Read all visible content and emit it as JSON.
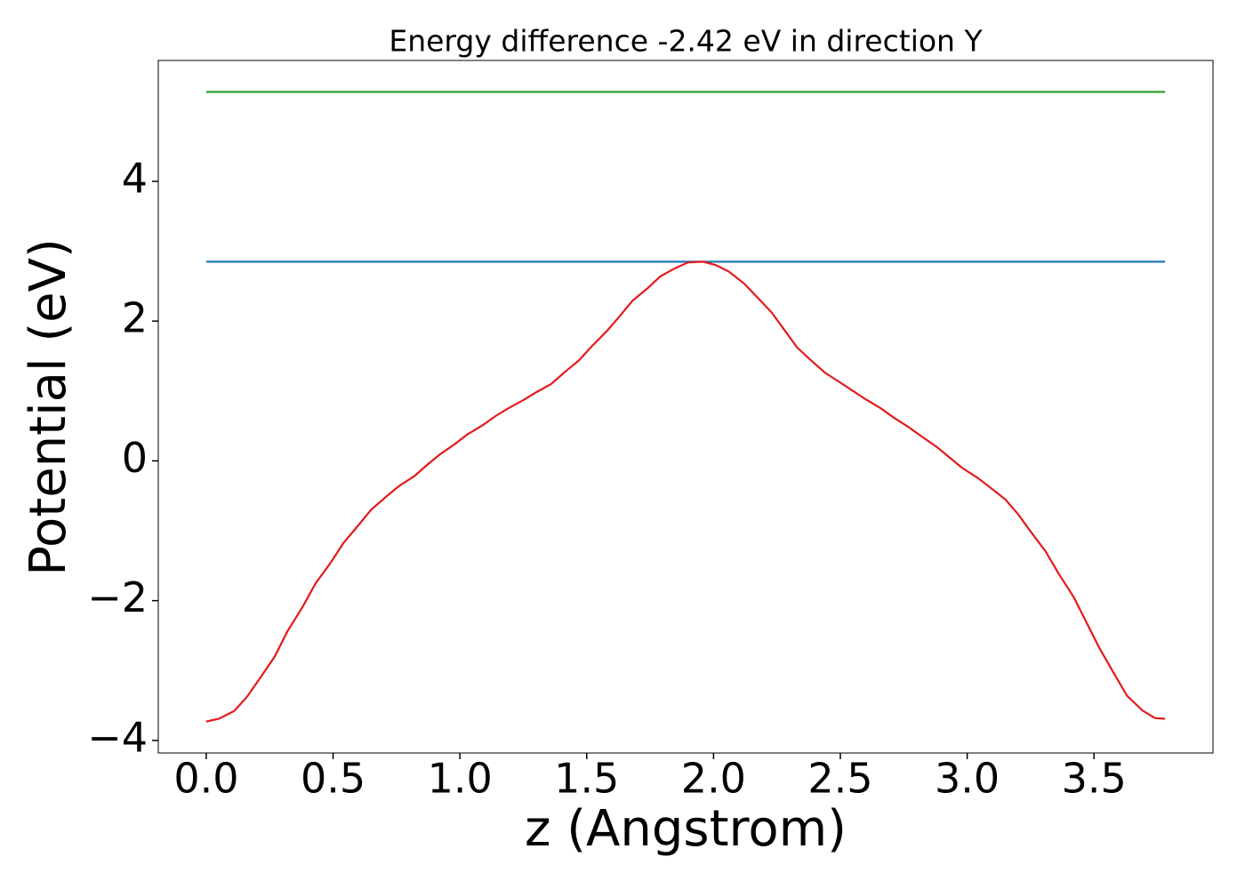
{
  "chart_data": {
    "type": "line",
    "title": "Energy difference -2.42 eV in direction Y",
    "xlabel": "z (Angstrom)",
    "ylabel": "Potential (eV)",
    "xlim": [
      -0.189,
      3.969
    ],
    "ylim": [
      -4.18,
      5.73
    ],
    "xticks": [
      {
        "value": 0,
        "label": "0.0"
      },
      {
        "value": 0.5,
        "label": "0.5"
      },
      {
        "value": 1,
        "label": "1.0"
      },
      {
        "value": 1.5,
        "label": "1.5"
      },
      {
        "value": 2,
        "label": "2.0"
      },
      {
        "value": 2.5,
        "label": "2.5"
      },
      {
        "value": 3,
        "label": "3.0"
      },
      {
        "value": 3.5,
        "label": "3.5"
      }
    ],
    "yticks": [
      {
        "value": -4,
        "label": "−4"
      },
      {
        "value": -2,
        "label": "−2"
      },
      0,
      2,
      4
    ],
    "grid": false,
    "series": [
      {
        "color": "#2ca02c",
        "x": [
          0,
          3.78
        ],
        "values": [
          5.28,
          5.28
        ]
      },
      {
        "color": "#1f77b4",
        "x": [
          0,
          3.78
        ],
        "values": [
          2.85,
          2.85
        ]
      },
      {
        "color": "#e41a1c",
        "x": [
          0,
          0.05,
          0.11,
          0.16,
          0.21,
          0.27,
          0.32,
          0.38,
          0.43,
          0.49,
          0.54,
          0.6,
          0.65,
          0.71,
          0.76,
          0.82,
          0.87,
          0.92,
          0.98,
          1.03,
          1.09,
          1.14,
          1.19,
          1.25,
          1.3,
          1.36,
          1.41,
          1.47,
          1.52,
          1.58,
          1.63,
          1.68,
          1.74,
          1.79,
          1.85,
          1.9,
          1.96,
          2.01,
          2.06,
          2.12,
          2.17,
          2.23,
          2.28,
          2.33,
          2.39,
          2.44,
          2.5,
          2.55,
          2.6,
          2.66,
          2.71,
          2.77,
          2.82,
          2.88,
          2.93,
          2.98,
          3.04,
          3.09,
          3.15,
          3.2,
          3.25,
          3.31,
          3.36,
          3.42,
          3.47,
          3.52,
          3.58,
          3.63,
          3.69,
          3.74,
          3.78
        ],
        "values": [
          -3.73,
          -3.69,
          -3.58,
          -3.38,
          -3.12,
          -2.8,
          -2.44,
          -2.09,
          -1.76,
          -1.46,
          -1.18,
          -0.92,
          -0.7,
          -0.51,
          -0.36,
          -0.22,
          -0.06,
          0.09,
          0.24,
          0.38,
          0.51,
          0.64,
          0.75,
          0.87,
          0.98,
          1.1,
          1.26,
          1.44,
          1.64,
          1.86,
          2.07,
          2.29,
          2.47,
          2.64,
          2.76,
          2.84,
          2.85,
          2.8,
          2.71,
          2.54,
          2.35,
          2.12,
          1.87,
          1.62,
          1.42,
          1.26,
          1.12,
          1.0,
          0.88,
          0.75,
          0.62,
          0.48,
          0.35,
          0.2,
          0.05,
          -0.1,
          -0.24,
          -0.38,
          -0.55,
          -0.76,
          -1.01,
          -1.3,
          -1.61,
          -1.95,
          -2.31,
          -2.67,
          -3.05,
          -3.36,
          -3.57,
          -3.68,
          -3.69
        ]
      }
    ]
  }
}
